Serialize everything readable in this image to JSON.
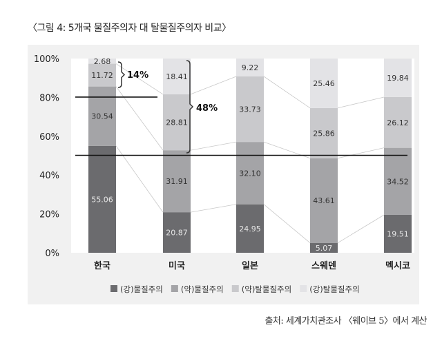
{
  "title": "〈그림 4: 5개국 물질주의자 대 탈물질주의자 비교〉",
  "source": "출처: 세계가치관조사 〈웨이브 5〉에서 계산",
  "chart_data": {
    "type": "bar",
    "stacked": true,
    "categories": [
      "한국",
      "미국",
      "일본",
      "스웨덴",
      "멕시코"
    ],
    "series": [
      {
        "name": "(강)물질주의",
        "color": "#6b6b6e",
        "values": [
          55.06,
          20.87,
          24.95,
          5.07,
          19.51
        ]
      },
      {
        "name": "(약)물질주의",
        "color": "#a4a4a7",
        "values": [
          30.54,
          31.91,
          32.1,
          43.61,
          34.52
        ]
      },
      {
        "name": "(약)탈물질주의",
        "color": "#c9c9cc",
        "values": [
          11.72,
          28.81,
          33.73,
          25.86,
          26.12
        ]
      },
      {
        "name": "(강)탈물질주의",
        "color": "#e3e3e6",
        "values": [
          2.68,
          18.41,
          9.22,
          25.46,
          19.84
        ]
      }
    ],
    "yticks": [
      "0%",
      "20%",
      "40%",
      "60%",
      "80%",
      "100%"
    ],
    "ylim": [
      0,
      100
    ],
    "legend": "bottom",
    "reference_lines": [
      80,
      50
    ],
    "annotations": [
      "14%",
      "48%"
    ]
  }
}
